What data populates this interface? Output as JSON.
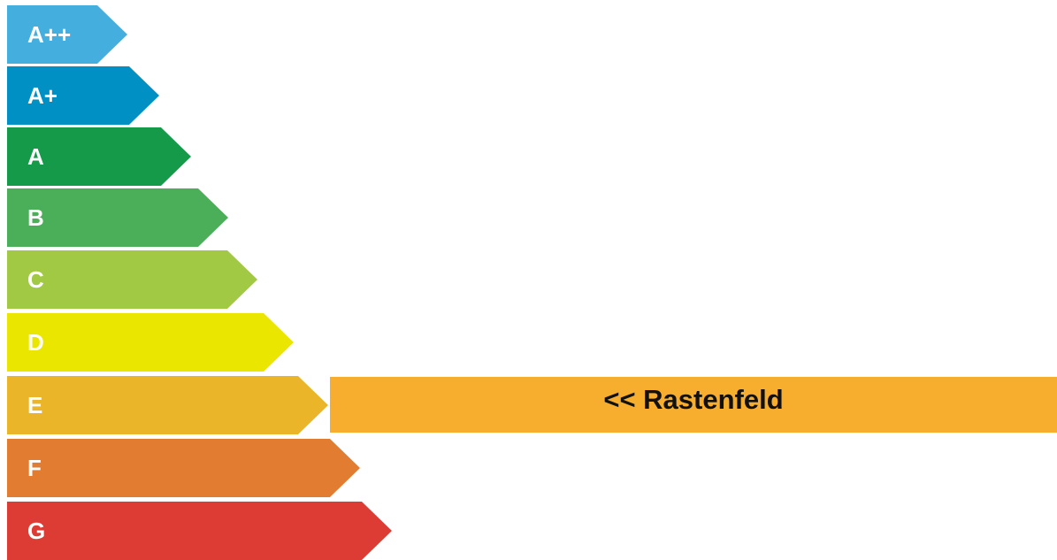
{
  "energy_scale": {
    "bands": [
      {
        "label": "A++",
        "color": "#44AEDF"
      },
      {
        "label": "A+",
        "color": "#0090C4"
      },
      {
        "label": "A",
        "color": "#159A4A"
      },
      {
        "label": "B",
        "color": "#4BAF5A"
      },
      {
        "label": "C",
        "color": "#A1C944"
      },
      {
        "label": "D",
        "color": "#EBE600"
      },
      {
        "label": "E",
        "color": "#EBB52A"
      },
      {
        "label": "F",
        "color": "#E27C31"
      },
      {
        "label": "G",
        "color": "#DC3C34"
      }
    ]
  },
  "marker": {
    "text": "<< Rastenfeld",
    "color": "#F7AE2E",
    "band": "E"
  }
}
